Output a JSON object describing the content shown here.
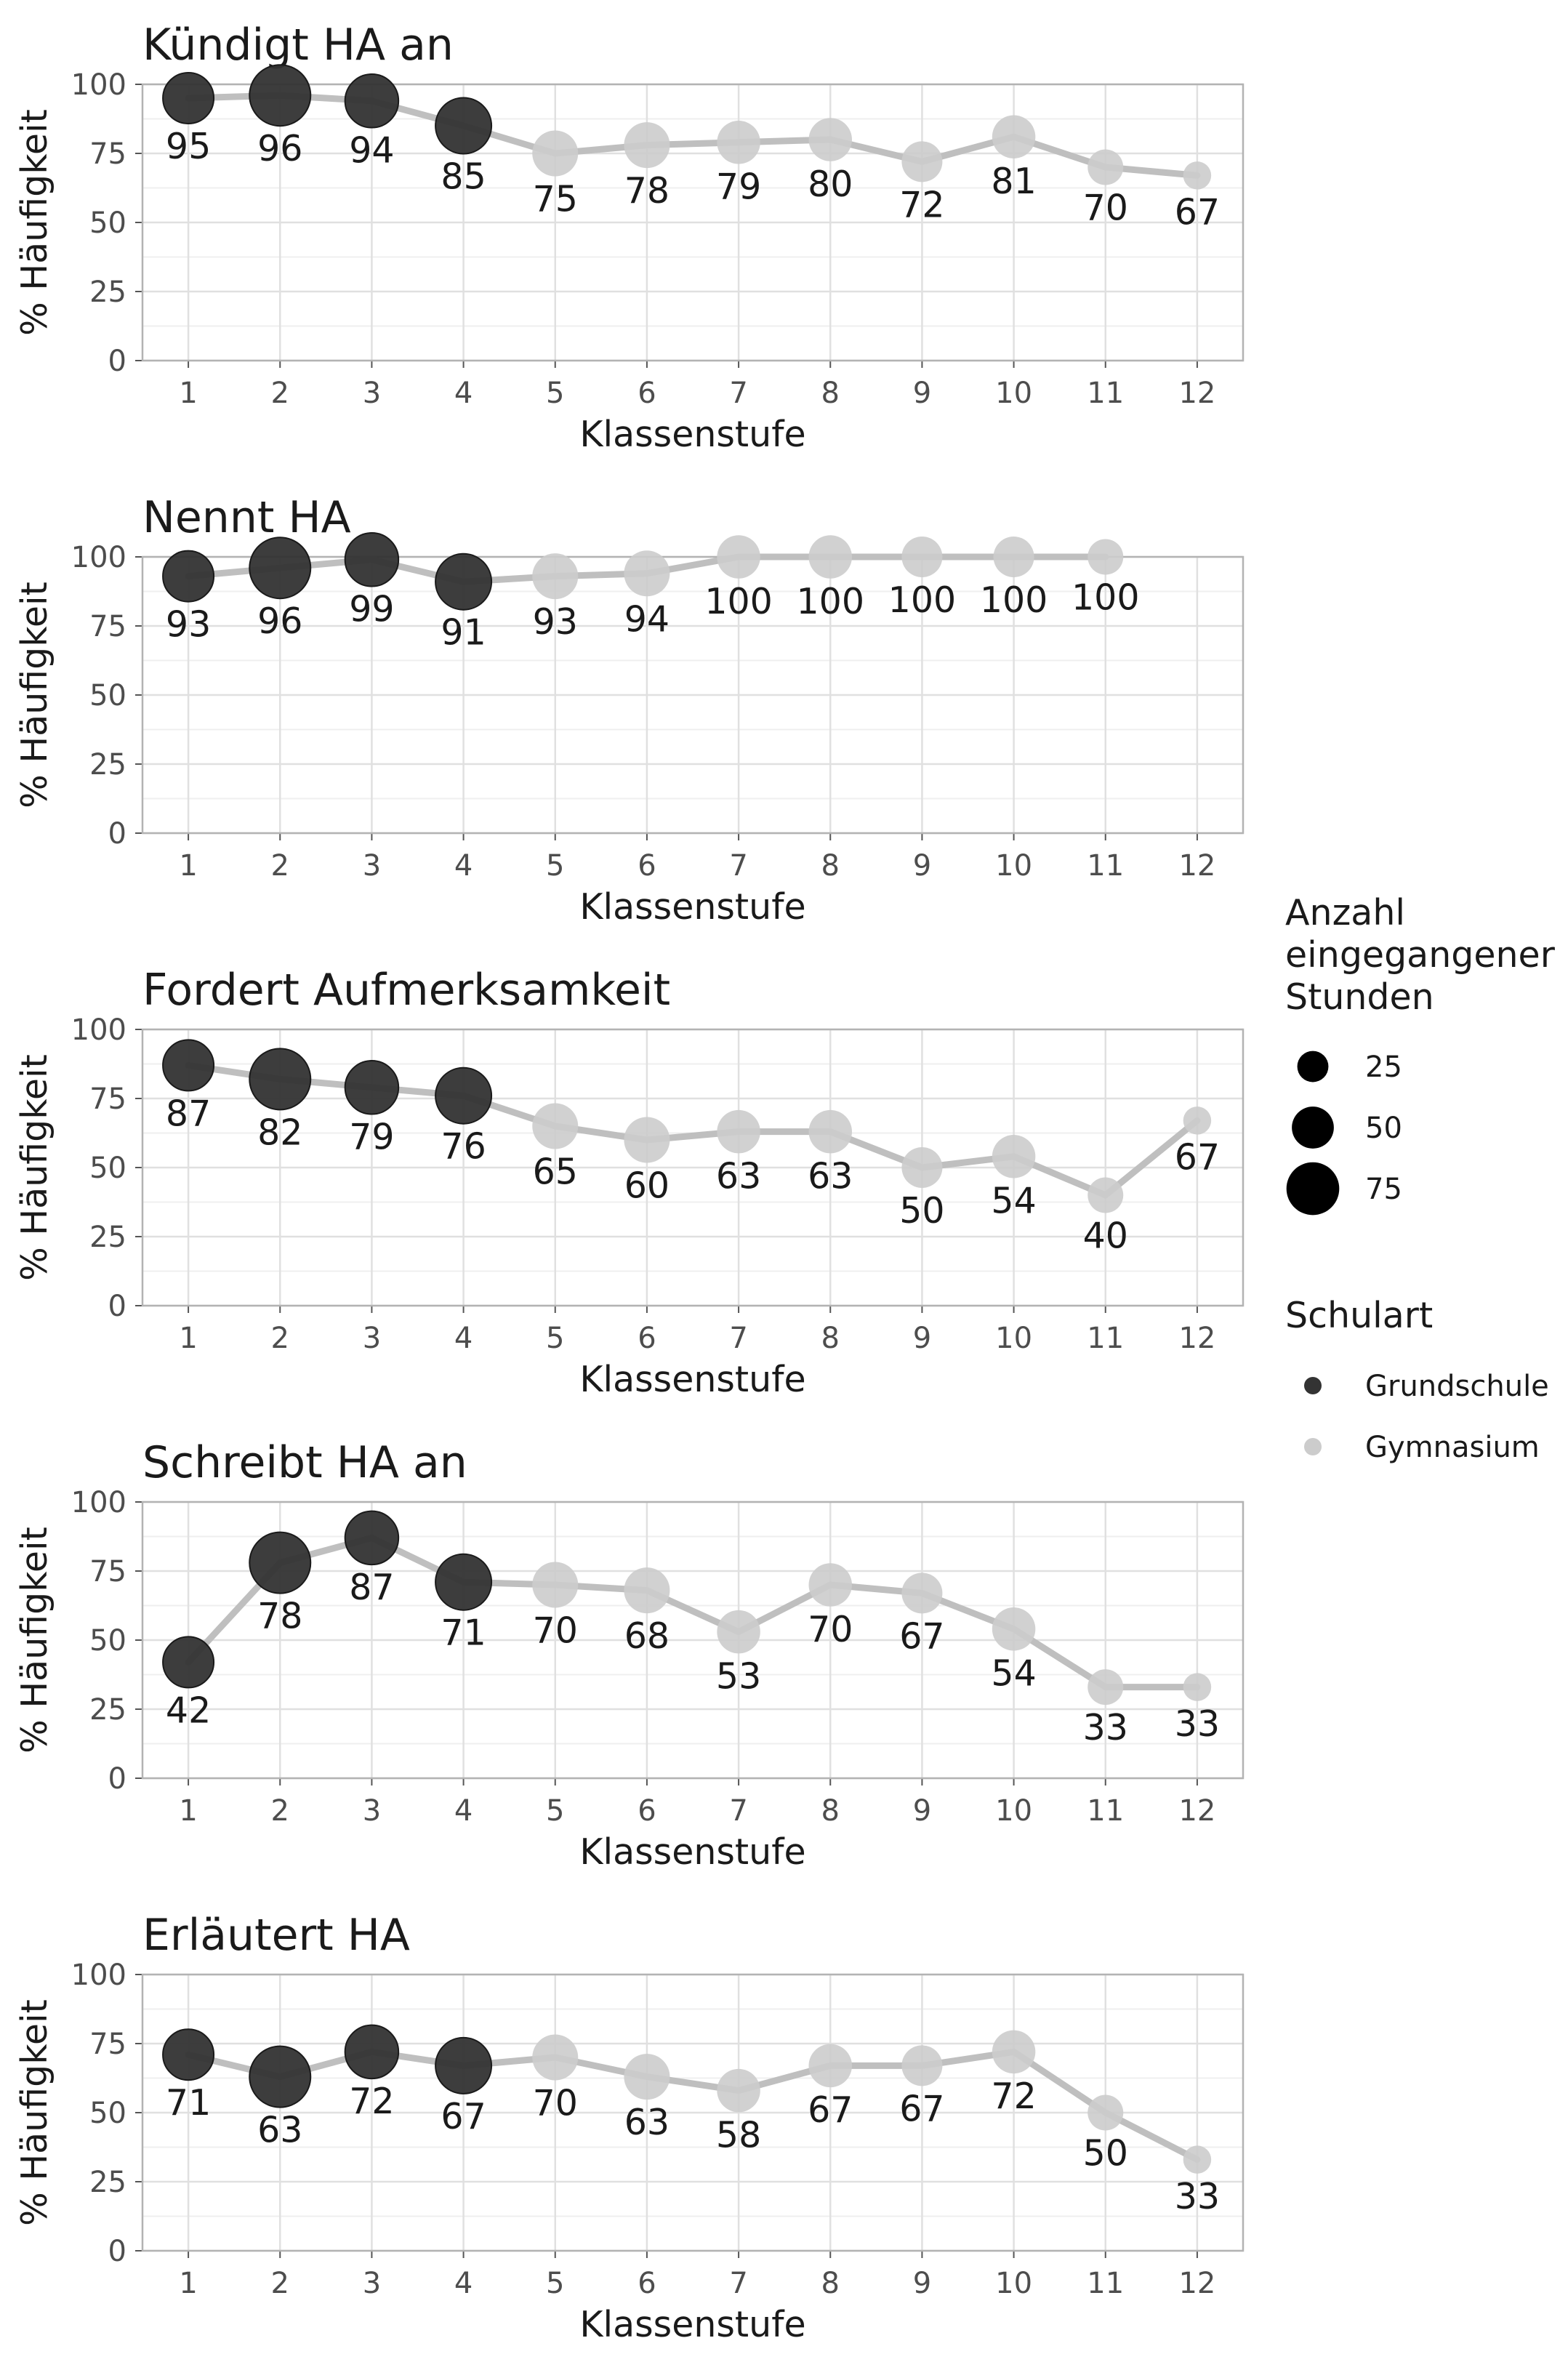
{
  "chart_data": {
    "type": "line",
    "x_label": "Klassenstufe",
    "y_label": "% Häufigkeit",
    "x_ticks": [
      "1",
      "2",
      "3",
      "4",
      "5",
      "6",
      "7",
      "8",
      "9",
      "10",
      "11",
      "12"
    ],
    "y_ticks": [
      "0",
      "25",
      "50",
      "75",
      "100"
    ],
    "ylim": [
      0,
      100
    ],
    "grid": true,
    "legend_placement": "right",
    "colors": {
      "Grundschule": "#333333",
      "Gymnasium": "#cccccc",
      "line": "#bfbfbf"
    },
    "size_legend": {
      "title": [
        "Anzahl",
        "eingegangener",
        "Stunden"
      ],
      "values": [
        25,
        50,
        75
      ]
    },
    "color_legend": {
      "title": "Schulart",
      "entries": [
        "Grundschule",
        "Gymnasium"
      ]
    },
    "panels": [
      {
        "title": "Kündigt HA an",
        "values": [
          95,
          96,
          94,
          85,
          75,
          78,
          79,
          80,
          72,
          81,
          70,
          67
        ],
        "labels": [
          "95",
          "96",
          "94",
          "85",
          "75",
          "78",
          "79",
          "80",
          "72",
          "81",
          "70",
          "67"
        ],
        "school": [
          "Grundschule",
          "Grundschule",
          "Grundschule",
          "Grundschule",
          "Gymnasium",
          "Gymnasium",
          "Gymnasium",
          "Gymnasium",
          "Gymnasium",
          "Gymnasium",
          "Gymnasium",
          "Gymnasium"
        ],
        "hours": [
          60,
          80,
          65,
          70,
          50,
          50,
          45,
          45,
          40,
          45,
          30,
          15
        ]
      },
      {
        "title": "Nennt HA",
        "values": [
          93,
          96,
          99,
          91,
          93,
          94,
          100,
          100,
          100,
          100,
          100,
          null
        ],
        "labels": [
          "93",
          "96",
          "99",
          "91",
          "93",
          "94",
          "100",
          "100",
          "100",
          "100",
          "100",
          ""
        ],
        "school": [
          "Grundschule",
          "Grundschule",
          "Grundschule",
          "Grundschule",
          "Gymnasium",
          "Gymnasium",
          "Gymnasium",
          "Gymnasium",
          "Gymnasium",
          "Gymnasium",
          "Gymnasium",
          "Gymnasium"
        ],
        "hours": [
          60,
          80,
          65,
          70,
          50,
          50,
          45,
          45,
          40,
          40,
          30,
          0
        ]
      },
      {
        "title": "Fordert Aufmerksamkeit",
        "values": [
          87,
          82,
          79,
          76,
          65,
          60,
          63,
          63,
          50,
          54,
          40,
          67
        ],
        "labels": [
          "87",
          "82",
          "79",
          "76",
          "65",
          "60",
          "63",
          "63",
          "50",
          "54",
          "40",
          "67"
        ],
        "school": [
          "Grundschule",
          "Grundschule",
          "Grundschule",
          "Grundschule",
          "Gymnasium",
          "Gymnasium",
          "Gymnasium",
          "Gymnasium",
          "Gymnasium",
          "Gymnasium",
          "Gymnasium",
          "Gymnasium"
        ],
        "hours": [
          60,
          80,
          65,
          70,
          50,
          50,
          45,
          45,
          40,
          45,
          30,
          15
        ]
      },
      {
        "title": "Schreibt HA an",
        "values": [
          42,
          78,
          87,
          71,
          70,
          68,
          53,
          70,
          67,
          54,
          33,
          33
        ],
        "labels": [
          "42",
          "78",
          "87",
          "71",
          "70",
          "68",
          "53",
          "70",
          "67",
          "54",
          "33",
          "33"
        ],
        "school": [
          "Grundschule",
          "Grundschule",
          "Grundschule",
          "Grundschule",
          "Gymnasium",
          "Gymnasium",
          "Gymnasium",
          "Gymnasium",
          "Gymnasium",
          "Gymnasium",
          "Gymnasium",
          "Gymnasium"
        ],
        "hours": [
          60,
          80,
          65,
          70,
          50,
          50,
          45,
          45,
          40,
          45,
          30,
          15
        ]
      },
      {
        "title": "Erläutert HA",
        "values": [
          71,
          63,
          72,
          67,
          70,
          63,
          58,
          67,
          67,
          72,
          50,
          33
        ],
        "labels": [
          "71",
          "63",
          "72",
          "67",
          "70",
          "63",
          "58",
          "67",
          "67",
          "72",
          "50",
          "33"
        ],
        "school": [
          "Grundschule",
          "Grundschule",
          "Grundschule",
          "Grundschule",
          "Gymnasium",
          "Gymnasium",
          "Gymnasium",
          "Gymnasium",
          "Gymnasium",
          "Gymnasium",
          "Gymnasium",
          "Gymnasium"
        ],
        "hours": [
          60,
          80,
          65,
          70,
          50,
          50,
          45,
          45,
          40,
          45,
          30,
          15
        ]
      }
    ]
  }
}
